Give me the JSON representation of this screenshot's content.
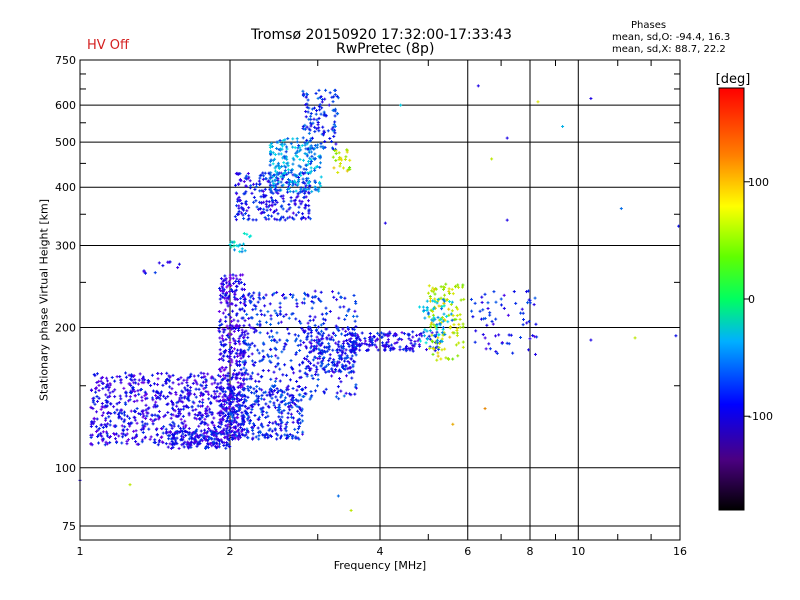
{
  "header": {
    "title_line1": "Tromsø 20150920 17:32:00-17:33:43",
    "title_line2": "RwPretec (8p)",
    "status": "HV Off"
  },
  "phase_info": {
    "heading": "Phases",
    "line_o": "mean, sd,O: -94.4, 16.3",
    "line_x": "mean, sd,X:  88.7, 22.2"
  },
  "colorbar": {
    "label": "[deg]",
    "ticks": [
      {
        "value": 100,
        "label": "100"
      },
      {
        "value": 0,
        "label": "0"
      },
      {
        "value": -100,
        "label": "-100"
      }
    ],
    "range": [
      -180,
      180
    ]
  },
  "chart_data": {
    "type": "scatter",
    "xlabel": "Frequency [MHz]",
    "ylabel": "Stationary phase Virtual Height [km]",
    "xscale": "log",
    "yscale": "log",
    "xlim": [
      1,
      16
    ],
    "ylim": [
      70,
      750
    ],
    "xticks": [
      1,
      2,
      4,
      6,
      8,
      10,
      16
    ],
    "xtick_labels": [
      "1",
      "2",
      "4",
      "6",
      "8",
      "10",
      "16"
    ],
    "yticks": [
      75,
      100,
      200,
      300,
      400,
      500,
      600,
      750
    ],
    "ytick_labels": [
      "75",
      "100",
      "200",
      "300",
      "400",
      "500",
      "600",
      "750"
    ],
    "grid": true,
    "color_encoding": "phase [deg]",
    "point_clusters": [
      {
        "x_range": [
          1.05,
          2.0
        ],
        "y_range": [
          112,
          160
        ],
        "phase": -100,
        "count": 700
      },
      {
        "x_range": [
          1.5,
          2.0
        ],
        "y_range": [
          110,
          120
        ],
        "phase": -95,
        "count": 160
      },
      {
        "x_range": [
          1.9,
          2.15
        ],
        "y_range": [
          115,
          260
        ],
        "phase": -105,
        "count": 420
      },
      {
        "x_range": [
          2.0,
          2.8
        ],
        "y_range": [
          115,
          150
        ],
        "phase": -85,
        "count": 300
      },
      {
        "x_range": [
          2.1,
          3.6
        ],
        "y_range": [
          140,
          240
        ],
        "phase": -85,
        "count": 420
      },
      {
        "x_range": [
          2.8,
          3.6
        ],
        "y_range": [
          160,
          200
        ],
        "phase": -90,
        "count": 180
      },
      {
        "x_range": [
          3.5,
          5.3
        ],
        "y_range": [
          178,
          196
        ],
        "phase": -95,
        "count": 160
      },
      {
        "x_range": [
          5.0,
          5.9
        ],
        "y_range": [
          170,
          250
        ],
        "phase": 100,
        "count": 120
      },
      {
        "x_range": [
          4.8,
          5.6
        ],
        "y_range": [
          185,
          230
        ],
        "phase": -40,
        "count": 60
      },
      {
        "x_range": [
          6.0,
          8.3
        ],
        "y_range": [
          175,
          240
        ],
        "phase": -90,
        "count": 70
      },
      {
        "x_range": [
          2.0,
          2.2
        ],
        "y_range": [
          290,
          320
        ],
        "phase": -30,
        "count": 20
      },
      {
        "x_range": [
          2.05,
          2.9
        ],
        "y_range": [
          340,
          430
        ],
        "phase": -90,
        "count": 260
      },
      {
        "x_range": [
          2.4,
          3.05
        ],
        "y_range": [
          390,
          510
        ],
        "phase": -50,
        "count": 220
      },
      {
        "x_range": [
          2.8,
          3.3
        ],
        "y_range": [
          480,
          650
        ],
        "phase": -80,
        "count": 120
      },
      {
        "x_range": [
          3.2,
          3.5
        ],
        "y_range": [
          430,
          490
        ],
        "phase": 100,
        "count": 25
      },
      {
        "x_range": [
          1.3,
          1.6
        ],
        "y_range": [
          260,
          280
        ],
        "phase": -100,
        "count": 12
      }
    ],
    "isolated_points": [
      {
        "x": 9.3,
        "y": 540,
        "phase": -40
      },
      {
        "x": 10.6,
        "y": 620,
        "phase": -100
      },
      {
        "x": 12.2,
        "y": 360,
        "phase": -60
      },
      {
        "x": 15.9,
        "y": 330,
        "phase": -90
      },
      {
        "x": 10.6,
        "y": 188,
        "phase": -100
      },
      {
        "x": 13.0,
        "y": 190,
        "phase": 100
      },
      {
        "x": 15.7,
        "y": 192,
        "phase": -90
      },
      {
        "x": 6.3,
        "y": 660,
        "phase": -100
      },
      {
        "x": 7.2,
        "y": 510,
        "phase": -100
      },
      {
        "x": 8.3,
        "y": 610,
        "phase": 110
      },
      {
        "x": 7.2,
        "y": 340,
        "phase": -100
      },
      {
        "x": 4.1,
        "y": 335,
        "phase": -100
      },
      {
        "x": 4.4,
        "y": 600,
        "phase": -30
      },
      {
        "x": 6.7,
        "y": 460,
        "phase": 100
      },
      {
        "x": 1.0,
        "y": 94,
        "phase": -100
      },
      {
        "x": 1.26,
        "y": 92,
        "phase": 100
      },
      {
        "x": 3.5,
        "y": 81,
        "phase": 100
      },
      {
        "x": 3.3,
        "y": 87,
        "phase": -60
      },
      {
        "x": 6.5,
        "y": 134,
        "phase": 140
      },
      {
        "x": 5.6,
        "y": 124,
        "phase": 130
      }
    ]
  }
}
